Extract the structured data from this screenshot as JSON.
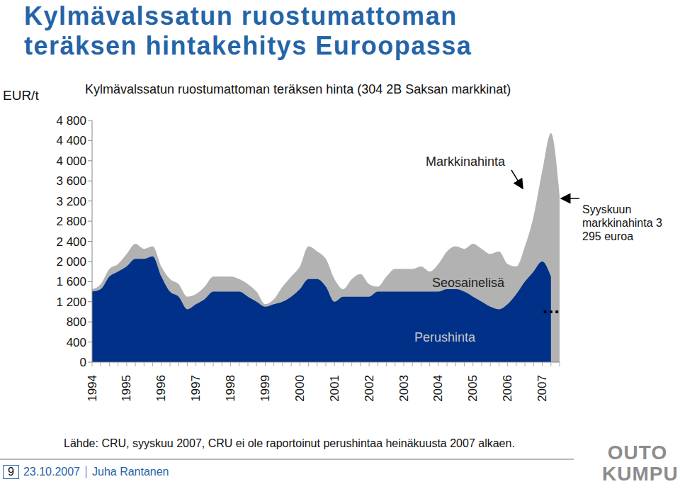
{
  "chart_data": {
    "type": "area",
    "title": "Kylmävalssatun ruostumattoman teräksen hintakehitys Euroopassa",
    "subtitle": "Kylmävalssatun ruostumattoman teräksen hinta (304 2B Saksan markkinat)",
    "y_label": "EUR/t",
    "categories": [
      "1994",
      null,
      null,
      null,
      "1995",
      null,
      null,
      null,
      "1996",
      null,
      null,
      null,
      "1997",
      null,
      null,
      null,
      "1998",
      null,
      null,
      null,
      "1999",
      null,
      null,
      null,
      "2000",
      null,
      null,
      null,
      "2001",
      null,
      null,
      null,
      "2002",
      null,
      null,
      null,
      "2003",
      null,
      null,
      null,
      "2004",
      null,
      null,
      null,
      "2005",
      null,
      null,
      null,
      "2006",
      null,
      null,
      null,
      "2007",
      null,
      null
    ],
    "series": [
      {
        "name": "Markkinahinta",
        "color": "#b2b2b2",
        "values": [
          1450,
          1550,
          1850,
          1950,
          2150,
          2350,
          2250,
          2300,
          1900,
          1650,
          1550,
          1300,
          1350,
          1500,
          1700,
          1700,
          1700,
          1650,
          1550,
          1400,
          1150,
          1250,
          1500,
          1700,
          1900,
          2300,
          2200,
          2050,
          1650,
          1450,
          1650,
          1750,
          1550,
          1500,
          1700,
          1850,
          1850,
          1850,
          1900,
          1800,
          1950,
          2200,
          2300,
          2250,
          2350,
          2250,
          2150,
          2200,
          1950,
          1900,
          2300,
          2900,
          3800,
          4550,
          3295
        ]
      },
      {
        "name": "Perushinta",
        "color": "#003087",
        "values": [
          1400,
          1450,
          1700,
          1800,
          1900,
          2050,
          2050,
          2100,
          1700,
          1400,
          1300,
          1050,
          1150,
          1250,
          1400,
          1400,
          1400,
          1400,
          1300,
          1200,
          1100,
          1150,
          1200,
          1300,
          1450,
          1650,
          1650,
          1500,
          1200,
          1300,
          1300,
          1300,
          1300,
          1400,
          1400,
          1400,
          1400,
          1400,
          1400,
          1400,
          1400,
          1450,
          1450,
          1400,
          1300,
          1200,
          1100,
          1050,
          1150,
          1350,
          1600,
          1800,
          2000,
          1700,
          null
        ]
      }
    ],
    "ylim": [
      0,
      4800
    ],
    "yticks": [
      0,
      400,
      800,
      {
        "value": 1200,
        "label": "1 200"
      },
      {
        "value": 1600,
        "label": "1 600"
      },
      {
        "value": 2000,
        "label": "2 000"
      },
      {
        "value": 2400,
        "label": "2 400"
      },
      {
        "value": 2800,
        "label": "2 800"
      },
      {
        "value": 3200,
        "label": "3 200"
      },
      {
        "value": 3600,
        "label": "3 600"
      },
      {
        "value": 4000,
        "label": "4 000"
      },
      {
        "value": 4400,
        "label": "4 400"
      },
      {
        "value": 4800,
        "label": "4 800"
      }
    ],
    "grid": false,
    "annotations": {
      "alloy": "Seosainelisä",
      "september": "Syyskuun markkinahinta 3 295 euroa",
      "gap": "..."
    },
    "source": "Lähde: CRU, syyskuu 2007, CRU ei ole raportoinut perushintaa heinäkuusta 2007 alkaen.",
    "footer": {
      "page": "9",
      "date": "23.10.2007",
      "author": "Juha Rantanen"
    },
    "logo": [
      "OUTO",
      "KUMPU"
    ]
  }
}
